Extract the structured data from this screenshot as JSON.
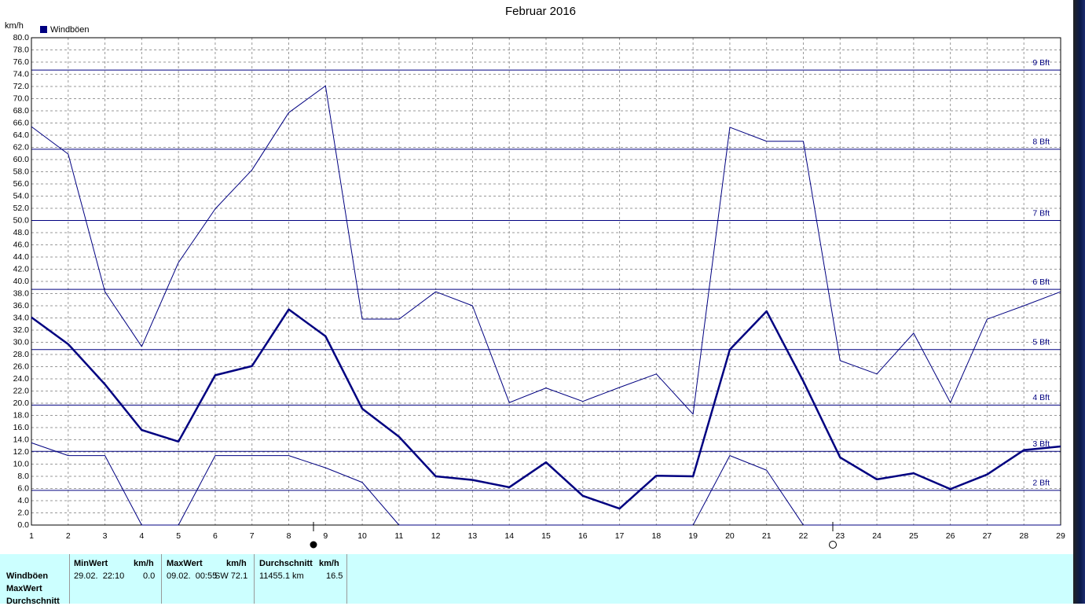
{
  "chart_data": {
    "type": "line",
    "title": "Februar 2016",
    "y_label": "km/h",
    "x": [
      1,
      2,
      3,
      4,
      5,
      6,
      7,
      8,
      9,
      10,
      11,
      12,
      13,
      14,
      15,
      16,
      17,
      18,
      19,
      20,
      21,
      22,
      23,
      24,
      25,
      26,
      27,
      28,
      29
    ],
    "xlim": [
      1,
      29
    ],
    "xticks": [
      1,
      2,
      3,
      4,
      5,
      6,
      7,
      8,
      9,
      10,
      11,
      12,
      13,
      14,
      15,
      16,
      17,
      18,
      19,
      20,
      21,
      22,
      23,
      24,
      25,
      26,
      27,
      28,
      29
    ],
    "ylim": [
      0,
      80
    ],
    "yticks": [
      {
        "value": 0,
        "label": "0.0"
      },
      {
        "value": 2,
        "label": "2.0"
      },
      {
        "value": 4,
        "label": "4.0"
      },
      {
        "value": 6,
        "label": "6.0"
      },
      {
        "value": 8,
        "label": "8.0"
      },
      {
        "value": 10,
        "label": "10.0"
      },
      {
        "value": 12,
        "label": "12.0"
      },
      {
        "value": 14,
        "label": "14.0"
      },
      {
        "value": 16,
        "label": "16.0"
      },
      {
        "value": 18,
        "label": "18.0"
      },
      {
        "value": 20,
        "label": "20.0"
      },
      {
        "value": 22,
        "label": "22.0"
      },
      {
        "value": 24,
        "label": "24.0"
      },
      {
        "value": 26,
        "label": "26.0"
      },
      {
        "value": 28,
        "label": "28.0"
      },
      {
        "value": 30,
        "label": "30.0"
      },
      {
        "value": 32,
        "label": "32.0"
      },
      {
        "value": 34,
        "label": "34.0"
      },
      {
        "value": 36,
        "label": "36.0"
      },
      {
        "value": 38,
        "label": "38.0"
      },
      {
        "value": 40,
        "label": "40.0"
      },
      {
        "value": 42,
        "label": "42.0"
      },
      {
        "value": 44,
        "label": "44.0"
      },
      {
        "value": 46,
        "label": "46.0"
      },
      {
        "value": 48,
        "label": "48.0"
      },
      {
        "value": 50,
        "label": "50.0"
      },
      {
        "value": 52,
        "label": "52.0"
      },
      {
        "value": 54,
        "label": "54.0"
      },
      {
        "value": 56,
        "label": "56.0"
      },
      {
        "value": 58,
        "label": "58.0"
      },
      {
        "value": 60,
        "label": "60.0"
      },
      {
        "value": 62,
        "label": "62.0"
      },
      {
        "value": 64,
        "label": "64.0"
      },
      {
        "value": 66,
        "label": "66.0"
      },
      {
        "value": 68,
        "label": "68.0"
      },
      {
        "value": 70,
        "label": "70.0"
      },
      {
        "value": 72,
        "label": "72.0"
      },
      {
        "value": 74,
        "label": "74.0"
      },
      {
        "value": 76,
        "label": "76.0"
      },
      {
        "value": 78,
        "label": "78.0"
      },
      {
        "value": 80,
        "label": "80.0"
      }
    ],
    "grid": true,
    "series": [
      {
        "name": "Windböen",
        "color": "#000080",
        "line_width": 2.5,
        "values": [
          34.1,
          29.7,
          23.1,
          15.6,
          13.7,
          24.6,
          26.1,
          35.4,
          31.0,
          19.1,
          14.5,
          8.0,
          7.4,
          6.2,
          10.3,
          4.8,
          2.7,
          8.1,
          8.0,
          28.8,
          35.1,
          23.6,
          11.1,
          7.5,
          8.5,
          5.9,
          8.3,
          12.3,
          12.9
        ]
      },
      {
        "color": "#000080",
        "line_width": 1,
        "values": [
          65.4,
          60.9,
          38.3,
          29.3,
          43.1,
          51.9,
          58.3,
          67.7,
          72.1,
          33.8,
          33.8,
          38.3,
          36.0,
          20.1,
          22.5,
          20.3,
          22.6,
          24.8,
          18.2,
          65.3,
          63.0,
          63.0,
          27.0,
          24.8,
          31.5,
          20.1,
          33.8,
          36.0,
          38.3
        ]
      },
      {
        "color": "#000080",
        "line_width": 1,
        "values": [
          13.5,
          11.4,
          11.4,
          0,
          0,
          11.4,
          11.4,
          11.4,
          9.4,
          7.0,
          0,
          0,
          0,
          0,
          0,
          0,
          0,
          0,
          0,
          11.4,
          9.0,
          0,
          0,
          0,
          0,
          0,
          0,
          0,
          0
        ]
      }
    ],
    "reference_lines": [
      {
        "value": 74.7,
        "label": "9 Bft"
      },
      {
        "value": 61.7,
        "label": "8 Bft"
      },
      {
        "value": 50.0,
        "label": "7 Bft"
      },
      {
        "value": 38.7,
        "label": "6 Bft"
      },
      {
        "value": 28.8,
        "label": "5 Bft"
      },
      {
        "value": 19.7,
        "label": "4 Bft"
      },
      {
        "value": 12.1,
        "label": "3 Bft"
      },
      {
        "value": 5.7,
        "label": "2 Bft"
      }
    ],
    "reference_color": "#000080"
  },
  "table": {
    "row_labels": [
      "Windböen",
      "MaxWert",
      "Durchschnitt"
    ],
    "columns": [
      {
        "header": "MinWert",
        "unit": "km/h",
        "cells": [
          "29.02.  22:10",
          "0.0"
        ]
      },
      {
        "header": "MaxWert",
        "unit": "km/h",
        "cells": [
          "09.02.  00:55",
          "SW 72.1"
        ]
      },
      {
        "header": "Durchschnitt",
        "unit": "km/h",
        "cells": [
          "11455.1 km",
          "16.5"
        ]
      }
    ]
  }
}
